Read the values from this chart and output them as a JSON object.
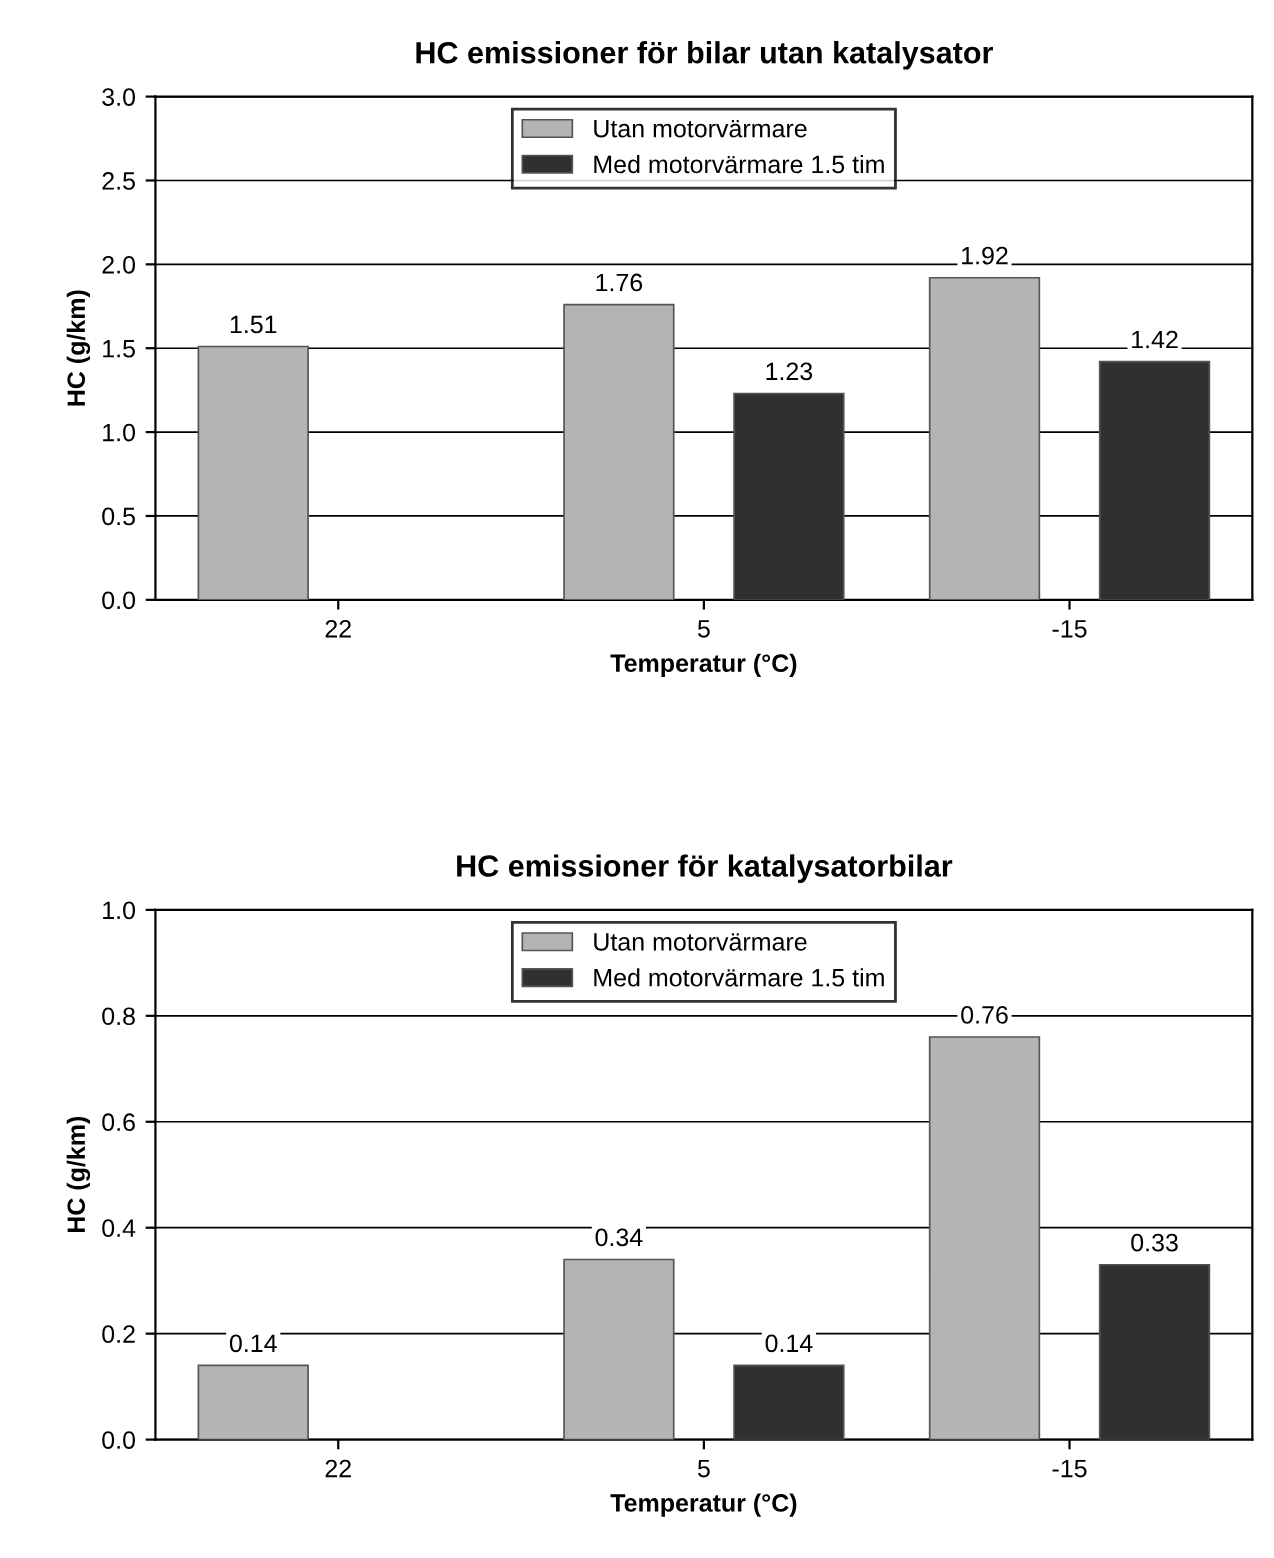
{
  "chart_data": [
    {
      "type": "bar",
      "title": "HC emissioner för bilar utan katalysator",
      "xlabel": "Temperatur (°C)",
      "ylabel": "HC (g/km)",
      "categories": [
        "22",
        "5",
        "-15"
      ],
      "series": [
        {
          "name": "Utan motorvärmare",
          "color": "#b4b4b4",
          "values": [
            1.51,
            1.76,
            1.92
          ]
        },
        {
          "name": "Med motorvärmare 1.5 tim",
          "color": "#303030",
          "values": [
            null,
            1.23,
            1.42
          ]
        }
      ],
      "ylim": [
        0,
        3
      ],
      "yticks": [
        {
          "value": 0,
          "label": "0.0"
        },
        {
          "value": 0.5,
          "label": "0.5"
        },
        {
          "value": 1,
          "label": "1.0"
        },
        {
          "value": 1.5,
          "label": "1.5"
        },
        {
          "value": 2,
          "label": "2.0"
        },
        {
          "value": 2.5,
          "label": "2.5"
        },
        {
          "value": 3,
          "label": "3.0"
        }
      ],
      "grid": "y",
      "legend": "top",
      "data_labels": true
    },
    {
      "type": "bar",
      "title": "HC emissioner för katalysatorbilar",
      "xlabel": "Temperatur (°C)",
      "ylabel": "HC (g/km)",
      "categories": [
        "22",
        "5",
        "-15"
      ],
      "series": [
        {
          "name": "Utan motorvärmare",
          "color": "#b4b4b4",
          "values": [
            0.14,
            0.34,
            0.76
          ]
        },
        {
          "name": "Med motorvärmare 1.5 tim",
          "color": "#303030",
          "values": [
            null,
            0.14,
            0.33
          ]
        }
      ],
      "ylim": [
        0,
        1
      ],
      "yticks": [
        {
          "value": 0,
          "label": "0.0"
        },
        {
          "value": 0.2,
          "label": "0.2"
        },
        {
          "value": 0.4,
          "label": "0.4"
        },
        {
          "value": 0.6,
          "label": "0.6"
        },
        {
          "value": 0.8,
          "label": "0.8"
        },
        {
          "value": 1,
          "label": "1.0"
        }
      ],
      "grid": "y",
      "legend": "top",
      "data_labels": true
    }
  ]
}
